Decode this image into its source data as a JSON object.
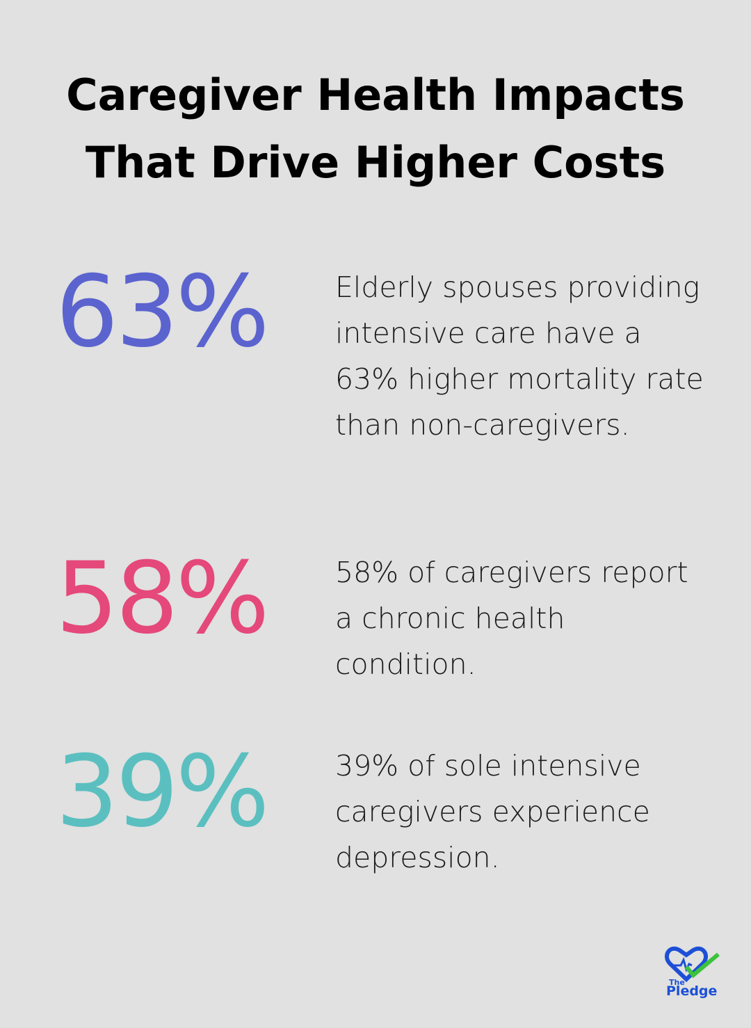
{
  "title": {
    "lines": [
      "Caregiver Health Impacts",
      "That Drive Higher Costs"
    ]
  },
  "stats": [
    {
      "value": "63%",
      "color": "#5b63cf",
      "text": "Elderly spouses providing intensive care have a 63% higher mortality rate than non-caregivers."
    },
    {
      "value": "58%",
      "color": "#e5487a",
      "text": "58% of caregivers report a chronic health condition."
    },
    {
      "value": "39%",
      "color": "#5bbfc0",
      "text": "39% of sole intensive caregivers experience depression."
    }
  ],
  "logo": {
    "top": "The",
    "name": "Pledge"
  }
}
